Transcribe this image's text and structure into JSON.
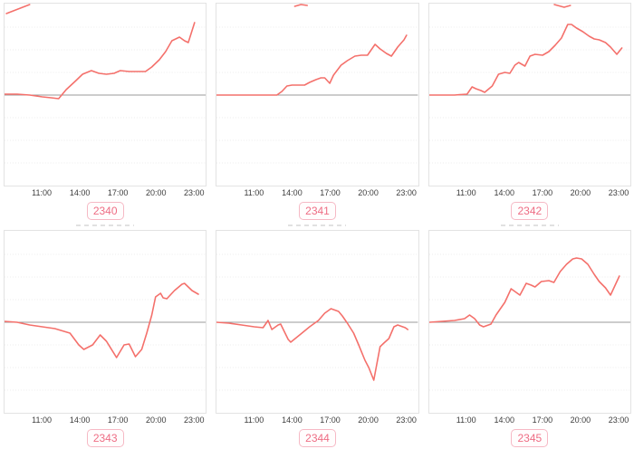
{
  "style": {
    "line_color": "#f4706b",
    "zero_line_color": "#9a9a9a",
    "grid_color": "#ececec",
    "panel_border_color": "#e3e3e3",
    "tick_text_color": "#3c3c3c",
    "badge_border_color": "#f6b9c5",
    "badge_text_color": "#ee6d84",
    "background": "#ffffff"
  },
  "axis": {
    "x_range_hours": [
      8,
      24
    ],
    "tick_hours": [
      11,
      14,
      17,
      20,
      23
    ],
    "tick_labels": [
      "11:00",
      "14:00",
      "17:00",
      "20:00",
      "23:00"
    ],
    "y_axis_labels": "none",
    "grid": "horizontal-dotted",
    "baseline_value": 0
  },
  "chart_data": [
    {
      "type": "line",
      "label": "2340",
      "x": [
        8,
        9,
        10,
        11,
        11.7,
        12.3,
        12.9,
        13.6,
        14.2,
        14.9,
        15.5,
        16.1,
        16.7,
        17.2,
        17.9,
        18.6,
        19.2,
        19.7,
        20.3,
        20.8,
        21.3,
        21.9,
        22.3,
        22.6,
        23.1
      ],
      "y": [
        1,
        1,
        0,
        -2,
        -3,
        -4,
        6,
        15,
        23,
        27,
        24,
        23,
        24,
        27,
        26,
        26,
        26,
        31,
        39,
        48,
        60,
        64,
        60,
        58,
        80
      ],
      "y_units": "relative-to-baseline (px)",
      "top_clip_remnant": [
        [
          2,
          11
        ],
        [
          28,
          1
        ]
      ],
      "clipped_title_above": false
    },
    {
      "type": "line",
      "label": "2341",
      "x": [
        8,
        9,
        10,
        11,
        12,
        12.8,
        13.2,
        13.6,
        14,
        14.5,
        15,
        15.4,
        15.9,
        16.3,
        16.6,
        17,
        17.3,
        17.9,
        18.4,
        19,
        19.5,
        20,
        20.3,
        20.6,
        21,
        21.5,
        21.9,
        22.4,
        22.9,
        23.1
      ],
      "y": [
        0,
        0,
        0,
        0,
        0,
        0,
        4,
        10,
        11,
        11,
        11,
        14,
        17,
        19,
        19,
        13,
        22,
        33,
        38,
        43,
        44,
        44,
        50,
        56,
        51,
        46,
        43,
        53,
        61,
        66
      ],
      "y_units": "relative-to-baseline (px)",
      "top_clip_remnant": [
        [
          87,
          3
        ],
        [
          94,
          1
        ],
        [
          101,
          2
        ]
      ],
      "clipped_title_above": false
    },
    {
      "type": "line",
      "label": "2342",
      "x": [
        8,
        9,
        10,
        11,
        11.4,
        11.7,
        12.1,
        12.4,
        13,
        13.5,
        14,
        14.4,
        14.8,
        15.1,
        15.6,
        16,
        16.4,
        17,
        17.5,
        18,
        18.5,
        19,
        19.3,
        19.7,
        20.2,
        20.7,
        21.1,
        21.5,
        22,
        22.4,
        22.9,
        23.3
      ],
      "y": [
        0,
        0,
        0,
        1,
        9,
        7,
        5,
        3,
        10,
        23,
        25,
        24,
        33,
        36,
        32,
        43,
        45,
        44,
        48,
        55,
        63,
        78,
        78,
        74,
        70,
        65,
        62,
        61,
        58,
        53,
        45,
        52
      ],
      "y_units": "relative-to-baseline (px)",
      "top_clip_remnant": [
        [
          139,
          1
        ],
        [
          150,
          4
        ],
        [
          157,
          2
        ]
      ],
      "clipped_title_above": false
    },
    {
      "type": "line",
      "label": "2343",
      "x": [
        8,
        9,
        10,
        11,
        12,
        13.2,
        13.9,
        14.3,
        15,
        15.6,
        16.1,
        16.9,
        17.5,
        17.9,
        18.4,
        18.9,
        19.3,
        19.7,
        20,
        20.4,
        20.6,
        20.9,
        21.5,
        22.1,
        22.3,
        22.9,
        23.4
      ],
      "y": [
        1,
        0,
        -3,
        -5,
        -7,
        -12,
        -25,
        -30,
        -25,
        -14,
        -21,
        -39,
        -25,
        -24,
        -38,
        -30,
        -12,
        8,
        28,
        32,
        27,
        26,
        35,
        42,
        43,
        35,
        31
      ],
      "y_units": "relative-to-baseline (px)",
      "top_clip_remnant": null,
      "clipped_title_above": true
    },
    {
      "type": "line",
      "label": "2344",
      "x": [
        8,
        9,
        10,
        11,
        11.7,
        12.1,
        12.4,
        12.9,
        13.1,
        13.7,
        13.9,
        14.7,
        15.4,
        16.1,
        16.6,
        17.1,
        17.7,
        18,
        18.4,
        18.9,
        19.3,
        19.8,
        20.1,
        20.5,
        21,
        21.3,
        21.7,
        22.1,
        22.4,
        23,
        23.2
      ],
      "y": [
        0,
        -1,
        -3,
        -5,
        -6,
        2,
        -8,
        -3,
        -2,
        -19,
        -22,
        -13,
        -5,
        2,
        10,
        15,
        12,
        7,
        -1,
        -12,
        -25,
        -42,
        -50,
        -64,
        -27,
        -23,
        -18,
        -5,
        -3,
        -6,
        -8
      ],
      "y_units": "relative-to-baseline (px)",
      "top_clip_remnant": null,
      "clipped_title_above": true
    },
    {
      "type": "line",
      "label": "2345",
      "x": [
        8,
        9,
        10,
        10.8,
        11.2,
        11.6,
        12,
        12.3,
        12.9,
        13.3,
        14,
        14.5,
        15.2,
        15.7,
        16.1,
        16.4,
        16.9,
        17.5,
        17.9,
        18.4,
        18.9,
        19.4,
        19.7,
        20.1,
        20.6,
        21.1,
        21.5,
        22,
        22.4,
        23.1
      ],
      "y": [
        0,
        1,
        2,
        4,
        8,
        4,
        -3,
        -5,
        -2,
        8,
        22,
        37,
        30,
        43,
        41,
        39,
        45,
        46,
        44,
        56,
        64,
        70,
        71,
        70,
        64,
        53,
        45,
        38,
        30,
        51
      ],
      "y_units": "relative-to-baseline (px)",
      "top_clip_remnant": null,
      "clipped_title_above": true
    }
  ]
}
